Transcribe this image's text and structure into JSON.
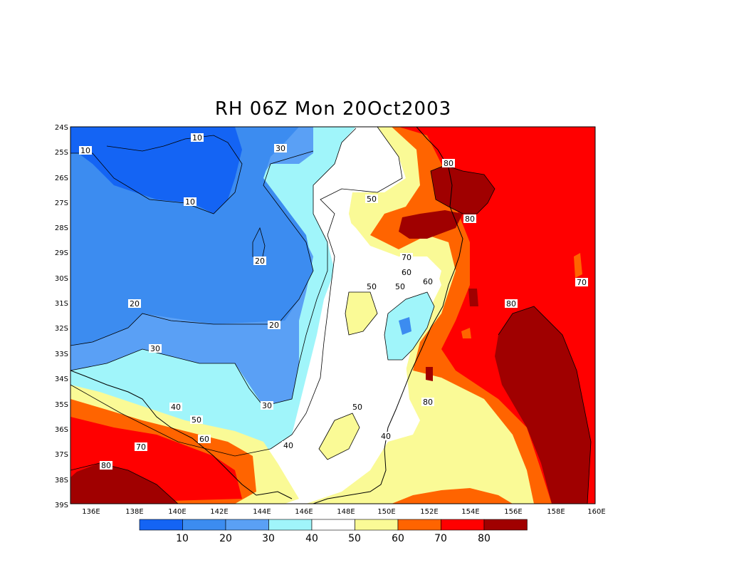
{
  "title": "RH 06Z Mon 20Oct2003",
  "axes": {
    "lat_ticks": [
      "24S",
      "25S",
      "26S",
      "27S",
      "28S",
      "29S",
      "30S",
      "31S",
      "32S",
      "33S",
      "34S",
      "35S",
      "36S",
      "37S",
      "38S",
      "39S"
    ],
    "lon_ticks": [
      "136E",
      "138E",
      "140E",
      "142E",
      "144E",
      "146E",
      "148E",
      "150E",
      "152E",
      "154E",
      "156E",
      "158E",
      "160E"
    ]
  },
  "contour_labels": [
    "10",
    "10",
    "10",
    "30",
    "20",
    "20",
    "20",
    "30",
    "40",
    "50",
    "60",
    "70",
    "80",
    "30",
    "40",
    "50",
    "60",
    "70",
    "80",
    "80",
    "80",
    "70",
    "80",
    "60",
    "40",
    "50",
    "50",
    "50",
    "50",
    "40",
    "60"
  ],
  "legend": {
    "ticks": [
      "10",
      "20",
      "30",
      "40",
      "50",
      "60",
      "70",
      "80"
    ],
    "colors": [
      "#1464f4",
      "#3c8cf0",
      "#5aa0f5",
      "#a0f5fa",
      "#ffffff",
      "#fafa96",
      "#ff6400",
      "#ff0000",
      "#a00000"
    ]
  }
}
